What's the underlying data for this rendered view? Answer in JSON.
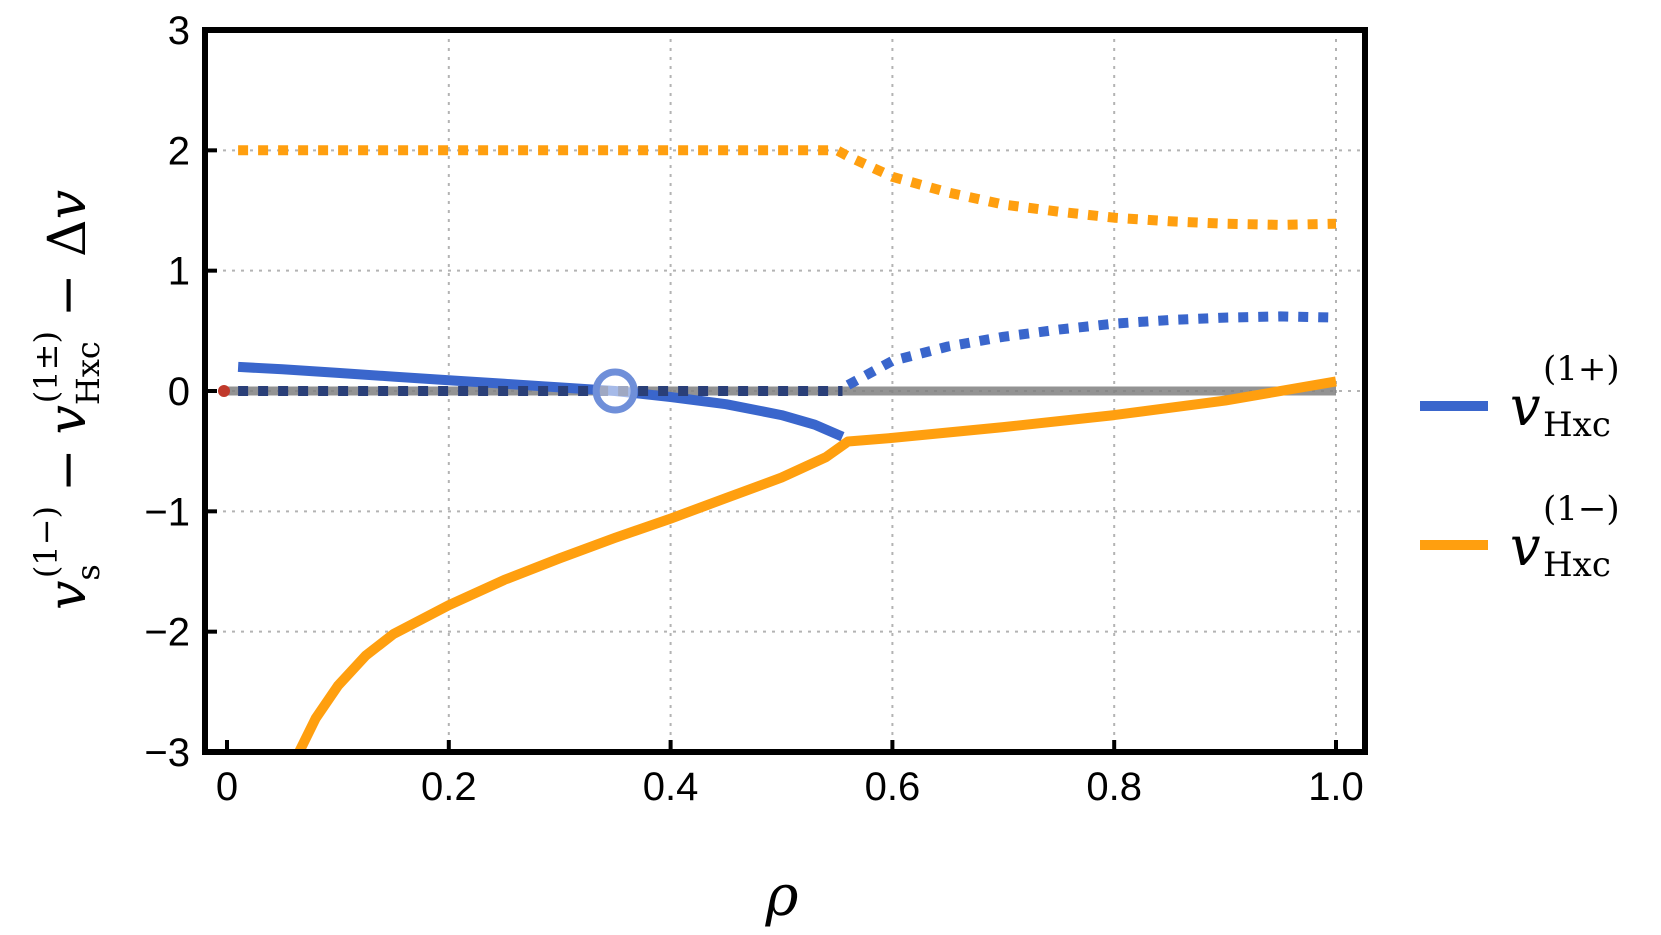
{
  "chart_data": {
    "type": "line",
    "xlabel": "ρ",
    "ylabel": {
      "v": "v",
      "sub_s": "s",
      "sup_s": "(1−)",
      "minus1": "−",
      "sub_hxc": "Hxc",
      "sup_hxc": "(1±)",
      "minus2": "− Δ",
      "v2": "v"
    },
    "xlim": [
      0,
      1.0
    ],
    "ylim": [
      -3,
      3
    ],
    "xticks": [
      "0",
      "0.2",
      "0.4",
      "0.6",
      "0.8",
      "1.0"
    ],
    "yticks": [
      "−3",
      "−2",
      "−1",
      "0",
      "1",
      "2",
      "3"
    ],
    "xtick_values": [
      0,
      0.2,
      0.4,
      0.6,
      0.8,
      1.0
    ],
    "ytick_values": [
      -3,
      -2,
      -1,
      0,
      1,
      2,
      3
    ],
    "grid": true,
    "legend_position": "right",
    "legend": [
      {
        "symbol": "v",
        "sub": "Hxc",
        "sup": "(1+)",
        "color": "#3a66cc"
      },
      {
        "symbol": "v",
        "sub": "Hxc",
        "sup": "(1−)",
        "color": "#ff9f0f"
      }
    ],
    "series": [
      {
        "name": "v_Hxc^(1+)",
        "color": "#3a66cc",
        "style": "solid",
        "x": [
          0.01,
          0.05,
          0.1,
          0.15,
          0.2,
          0.25,
          0.3,
          0.35,
          0.4,
          0.45,
          0.5,
          0.53,
          0.555
        ],
        "y": [
          0.2,
          0.18,
          0.15,
          0.12,
          0.09,
          0.06,
          0.03,
          0.0,
          -0.05,
          -0.11,
          -0.2,
          -0.28,
          -0.38
        ]
      },
      {
        "name": "v_Hxc^(1+)",
        "color": "#3a66cc",
        "style": "dotted",
        "x": [
          0.56,
          0.6,
          0.65,
          0.7,
          0.75,
          0.8,
          0.85,
          0.9,
          0.95,
          1.0
        ],
        "y": [
          0.05,
          0.25,
          0.37,
          0.45,
          0.51,
          0.56,
          0.59,
          0.61,
          0.62,
          0.61
        ]
      },
      {
        "name": "v_Hxc^(1+)",
        "color": "#2a3f78",
        "style": "dotted",
        "x": [
          0.01,
          0.1,
          0.2,
          0.3,
          0.4,
          0.5,
          0.555
        ],
        "y": [
          0.0,
          0.0,
          0.0,
          0.0,
          0.0,
          0.0,
          0.0
        ]
      },
      {
        "name": "v_Hxc^(1−)",
        "color": "#ff9f0f",
        "style": "solid",
        "x": [
          0.065,
          0.08,
          0.1,
          0.125,
          0.15,
          0.2,
          0.25,
          0.3,
          0.35,
          0.4,
          0.45,
          0.5,
          0.54,
          0.56,
          0.6,
          0.7,
          0.8,
          0.9,
          1.0
        ],
        "y": [
          -3.0,
          -2.72,
          -2.45,
          -2.2,
          -2.02,
          -1.78,
          -1.57,
          -1.39,
          -1.22,
          -1.06,
          -0.89,
          -0.72,
          -0.55,
          -0.42,
          -0.39,
          -0.3,
          -0.2,
          -0.08,
          0.08
        ]
      },
      {
        "name": "v_Hxc^(1−)",
        "color": "#ff9f0f",
        "style": "dotted",
        "x": [
          0.01,
          0.1,
          0.2,
          0.3,
          0.4,
          0.5,
          0.55,
          0.56,
          0.6,
          0.65,
          0.7,
          0.75,
          0.8,
          0.85,
          0.9,
          0.95,
          1.0
        ],
        "y": [
          2.0,
          2.0,
          2.0,
          2.0,
          2.0,
          2.0,
          2.0,
          1.95,
          1.78,
          1.65,
          1.55,
          1.49,
          1.44,
          1.41,
          1.39,
          1.38,
          1.39
        ]
      },
      {
        "name": "zero",
        "color": "#808080",
        "style": "solid",
        "x": [
          0.0,
          1.0
        ],
        "y": [
          0.0,
          0.0
        ]
      }
    ],
    "markers": [
      {
        "x": 0.35,
        "y": 0.0,
        "shape": "open-circle",
        "color": "#6f8fd9"
      },
      {
        "x": 0.0,
        "y": 0.0,
        "shape": "dot",
        "color": "#c0392b"
      }
    ]
  }
}
